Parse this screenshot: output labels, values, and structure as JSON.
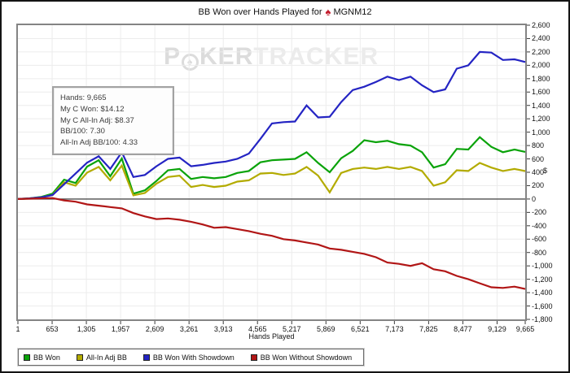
{
  "title": {
    "prefix": "BB Won over Hands Played for",
    "player": "MGNM12",
    "spade_icon": "♠"
  },
  "watermark": {
    "part1": "P",
    "chip_icon": "poker-chip",
    "chip_glyph": "♠",
    "part2": "KER",
    "part3": "TRACKER"
  },
  "tooltip": {
    "lines": [
      "Hands: 9,665",
      "My C Won: $14.12",
      "My C All-In Adj: $8.37",
      "BB/100: 7.30",
      "All-In Adj BB/100: 4.33"
    ]
  },
  "axes": {
    "x_title": "Hands Played",
    "y_title": "$"
  },
  "colors": {
    "grid": "#ececec",
    "zero_line": "#4f4f4f",
    "tick": "#3a3a3a",
    "frame": "#848484",
    "title_spade": "#c41e2f"
  },
  "chart_data": {
    "type": "line",
    "title": "BB Won over Hands Played for MGNM12",
    "xlabel": "Hands Played",
    "ylabel": "$",
    "xlim": [
      1,
      9665
    ],
    "ylim": [
      -1800,
      2600
    ],
    "grid": true,
    "legend_position": "bottom-left",
    "x_ticks": [
      1,
      653,
      1305,
      1957,
      2609,
      3261,
      3913,
      4565,
      5217,
      5869,
      6521,
      7173,
      7825,
      8477,
      9129,
      9665
    ],
    "y_ticks": [
      -1800,
      -1600,
      -1400,
      -1200,
      -1000,
      -800,
      -600,
      -400,
      -200,
      0,
      200,
      400,
      600,
      800,
      1000,
      1200,
      1400,
      1600,
      1800,
      2000,
      2200,
      2400,
      2600
    ],
    "x": [
      1,
      220,
      440,
      660,
      880,
      1100,
      1320,
      1540,
      1760,
      1980,
      2200,
      2420,
      2640,
      2860,
      3080,
      3300,
      3520,
      3740,
      3960,
      4180,
      4400,
      4620,
      4840,
      5060,
      5280,
      5500,
      5720,
      5940,
      6160,
      6380,
      6600,
      6820,
      7040,
      7260,
      7480,
      7700,
      7920,
      8140,
      8360,
      8580,
      8800,
      9020,
      9240,
      9460,
      9665
    ],
    "series": [
      {
        "name": "BB Won",
        "color": "#0aa30a",
        "values": [
          0,
          10,
          30,
          80,
          290,
          240,
          485,
          580,
          340,
          605,
          80,
          130,
          270,
          430,
          450,
          300,
          330,
          310,
          330,
          390,
          420,
          550,
          580,
          590,
          600,
          700,
          540,
          400,
          610,
          720,
          880,
          850,
          870,
          820,
          800,
          700,
          470,
          520,
          750,
          740,
          925,
          780,
          700,
          740,
          705
        ]
      },
      {
        "name": "All-In Adj BB",
        "color": "#b3ab00",
        "values": [
          0,
          8,
          25,
          60,
          250,
          200,
          395,
          480,
          280,
          500,
          55,
          90,
          230,
          330,
          350,
          180,
          210,
          180,
          200,
          260,
          280,
          380,
          390,
          360,
          380,
          480,
          350,
          100,
          390,
          450,
          470,
          450,
          480,
          450,
          480,
          420,
          200,
          250,
          430,
          420,
          540,
          470,
          420,
          450,
          418
        ]
      },
      {
        "name": "BB Won With Showdown",
        "color": "#2424c3",
        "values": [
          0,
          10,
          25,
          60,
          220,
          380,
          545,
          640,
          450,
          700,
          330,
          360,
          490,
          600,
          620,
          490,
          510,
          540,
          560,
          600,
          680,
          900,
          1130,
          1150,
          1160,
          1400,
          1220,
          1230,
          1450,
          1630,
          1680,
          1750,
          1830,
          1780,
          1830,
          1700,
          1600,
          1640,
          1950,
          2000,
          2200,
          2190,
          2080,
          2090,
          2050
        ]
      },
      {
        "name": "BB Won Without Showdown",
        "color": "#b11616",
        "values": [
          0,
          5,
          10,
          15,
          -20,
          -40,
          -80,
          -100,
          -120,
          -140,
          -210,
          -260,
          -300,
          -290,
          -310,
          -340,
          -380,
          -430,
          -420,
          -450,
          -480,
          -520,
          -550,
          -600,
          -620,
          -650,
          -680,
          -740,
          -760,
          -790,
          -820,
          -870,
          -950,
          -970,
          -1000,
          -960,
          -1050,
          -1080,
          -1150,
          -1200,
          -1260,
          -1320,
          -1330,
          -1310,
          -1345
        ]
      }
    ]
  }
}
